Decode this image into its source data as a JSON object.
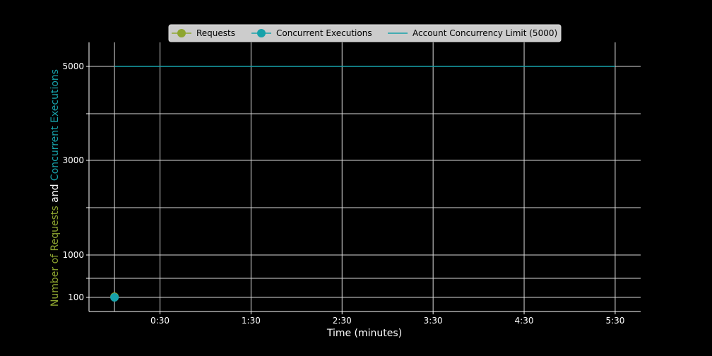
{
  "chart_data": {
    "type": "line",
    "xlabel": "Time (minutes)",
    "ylabel_parts": [
      {
        "text": "Number of Requests",
        "color": "#8ea630"
      },
      {
        "text": " and ",
        "color": "#ffffff"
      },
      {
        "text": "Concurrent Executions",
        "color": "#17a2aa"
      }
    ],
    "x_ticks": [
      {
        "value": 0.5,
        "label": "0:30"
      },
      {
        "value": 1.5,
        "label": "1:30"
      },
      {
        "value": 2.5,
        "label": "2:30"
      },
      {
        "value": 3.5,
        "label": "3:30"
      },
      {
        "value": 4.5,
        "label": "4:30"
      },
      {
        "value": 5.5,
        "label": "5:30"
      }
    ],
    "x_extra_gridlines": [
      0.0
    ],
    "xlim": [
      -0.28,
      5.78
    ],
    "y_ticks": [
      {
        "value": 100,
        "label": "100"
      },
      {
        "value": 500,
        "label": ""
      },
      {
        "value": 1000,
        "label": "1000"
      },
      {
        "value": 2000,
        "label": ""
      },
      {
        "value": 3000,
        "label": "3000"
      },
      {
        "value": 4000,
        "label": ""
      },
      {
        "value": 5000,
        "label": "5000"
      }
    ],
    "y_scale": "piecewise",
    "grid": true,
    "legend_position": "top-center",
    "series": [
      {
        "name": "Requests",
        "color": "#8ea630",
        "marker": "circle",
        "x": [
          0.0
        ],
        "y": [
          100
        ]
      },
      {
        "name": "Concurrent Executions",
        "color": "#17a2aa",
        "marker": "circle",
        "x": [
          0.0
        ],
        "y": [
          100
        ]
      },
      {
        "name": "Account Concurrency Limit (5000)",
        "color": "#17a2aa",
        "marker": "none",
        "x": [
          0.0,
          5.5
        ],
        "y": [
          5000,
          5000
        ]
      }
    ]
  }
}
